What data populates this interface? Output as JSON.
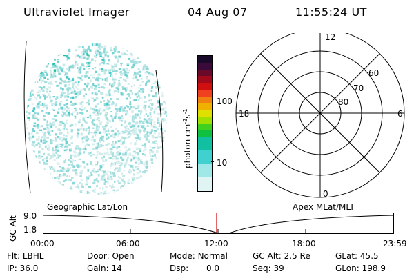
{
  "header": {
    "title": "Ultraviolet Imager",
    "date": "04 Aug 07",
    "time": "11:55:24 UT"
  },
  "colorbar": {
    "unit_label": "photon cm",
    "unit_exp1": "-2",
    "unit_mid": "s",
    "unit_exp2": "-1",
    "tick_100": "100",
    "tick_10": "10",
    "colors": [
      "#1a0a2a",
      "#3a0a3a",
      "#6a0a2a",
      "#a00a1a",
      "#d01010",
      "#f04020",
      "#f08010",
      "#f0b000",
      "#e0e000",
      "#a0e000",
      "#40d020",
      "#10c040",
      "#10c0a0",
      "#40d0d0",
      "#a0e8e8",
      "#e0f4f4"
    ]
  },
  "polar": {
    "mlt_top": "12",
    "mlt_bottom": "0",
    "mlt_left": "18",
    "mlt_right": "6",
    "lat_60": "60",
    "lat_70": "70",
    "lat_80": "80"
  },
  "timeline": {
    "left_title": "Geographic Lat/Lon",
    "right_title": "Apex MLat/MLT",
    "axis_label": "GC Alt",
    "y_top": "9.0",
    "y_bottom": "1.8",
    "x_ticks": [
      "00:00",
      "06:00",
      "12:00",
      "18:00",
      "23:59"
    ]
  },
  "status": {
    "flt_label": "Flt:",
    "flt_value": "LBHL",
    "door_label": "Door:",
    "door_value": "Open",
    "mode_label": "Mode:",
    "mode_value": "Normal",
    "gcalt_label": "GC Alt:",
    "gcalt_value": "2.5 Re",
    "glat_label": "GLat:",
    "glat_value": "45.5",
    "ip_label": "IP:",
    "ip_value": "36.0",
    "gain_label": "Gain:",
    "gain_value": "14",
    "dsp_label": "Dsp:",
    "dsp_value": "0.0",
    "seq_label": "Seq:",
    "seq_value": "39",
    "glon_label": "GLon:",
    "glon_value": "198.9"
  }
}
